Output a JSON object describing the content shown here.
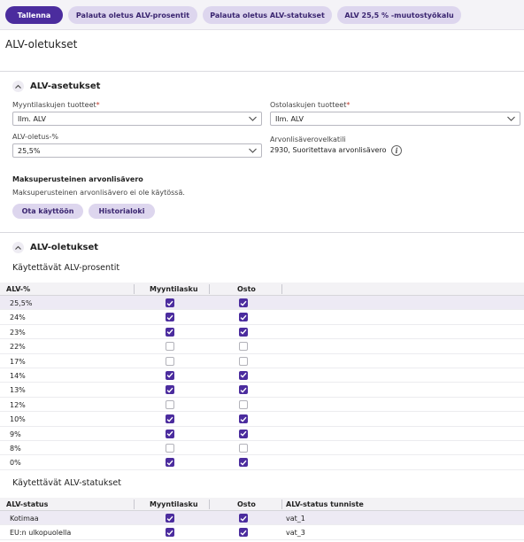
{
  "colors": {
    "primary": "#4b2c9e",
    "secondary_bg": "#ddd6ee",
    "row_selected": "#edeaf4"
  },
  "toolbar": {
    "save_label": "Tallenna",
    "reset_rates_label": "Palauta oletus ALV-prosentit",
    "reset_statuses_label": "Palauta oletus ALV-statukset",
    "tool_label": "ALV 25,5 % -muutostyökalu"
  },
  "page_title": "ALV-oletukset",
  "vat_settings": {
    "title": "ALV-asetukset",
    "sales_products_label": "Myyntilaskujen tuotteet",
    "sales_products_value": "Ilm. ALV",
    "purchase_products_label": "Ostolaskujen tuotteet",
    "purchase_products_value": "Ilm. ALV",
    "default_vat_label": "ALV-oletus-%",
    "default_vat_value": "25,5%",
    "vat_debt_account_label": "Arvonlisäverovelkatili",
    "vat_debt_account_value": "2930, Suoritettava arvonlisävero",
    "required_mark": "*",
    "info_icon": "info-icon",
    "cash_basis_title": "Maksuperusteinen arvonlisävero",
    "cash_basis_desc": "Maksuperusteinen arvonlisävero ei ole käytössä.",
    "enable_label": "Ota käyttöön",
    "history_label": "Historialoki"
  },
  "vat_defaults": {
    "title": "ALV-oletukset",
    "rates_title": "Käytettävät ALV-prosentit",
    "rates_headers": {
      "rate": "ALV-%",
      "sales": "Myyntilasku",
      "purchase": "Osto"
    },
    "rates": [
      {
        "rate": "25,5%",
        "sales": true,
        "purchase": true,
        "selected": true
      },
      {
        "rate": "24%",
        "sales": true,
        "purchase": true
      },
      {
        "rate": "23%",
        "sales": true,
        "purchase": true
      },
      {
        "rate": "22%",
        "sales": false,
        "purchase": false
      },
      {
        "rate": "17%",
        "sales": false,
        "purchase": false
      },
      {
        "rate": "14%",
        "sales": true,
        "purchase": true
      },
      {
        "rate": "13%",
        "sales": true,
        "purchase": true
      },
      {
        "rate": "12%",
        "sales": false,
        "purchase": false
      },
      {
        "rate": "10%",
        "sales": true,
        "purchase": true
      },
      {
        "rate": "9%",
        "sales": true,
        "purchase": true
      },
      {
        "rate": "8%",
        "sales": false,
        "purchase": false
      },
      {
        "rate": "0%",
        "sales": true,
        "purchase": true
      }
    ],
    "statuses_title": "Käytettävät ALV-statukset",
    "statuses_headers": {
      "status": "ALV-status",
      "sales": "Myyntilasku",
      "purchase": "Osto",
      "id": "ALV-status tunniste"
    },
    "statuses": [
      {
        "status": "Kotimaa",
        "sales": true,
        "purchase": true,
        "id": "vat_1",
        "selected": true
      },
      {
        "status": "EU:n ulkopuolella",
        "sales": true,
        "purchase": true,
        "id": "vat_3"
      }
    ]
  }
}
